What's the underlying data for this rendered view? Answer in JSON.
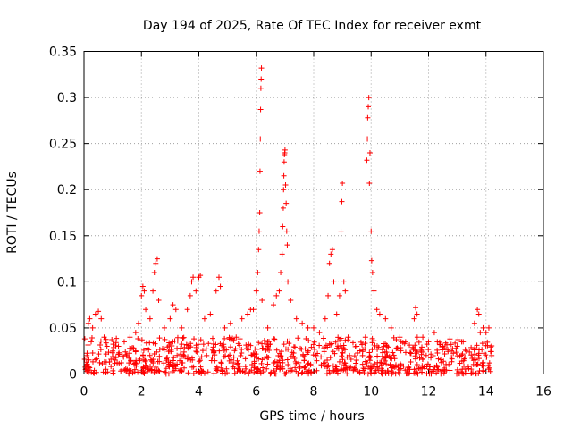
{
  "chart_data": {
    "type": "scatter",
    "title": "Day 194 of 2025, Rate Of TEC Index for receiver exmt",
    "xlabel": "GPS time / hours",
    "ylabel": "ROTI / TECUs",
    "xlim": [
      0,
      16
    ],
    "ylim": [
      0,
      0.35
    ],
    "xticks": [
      "0",
      "2",
      "4",
      "6",
      "8",
      "10",
      "12",
      "14",
      "16"
    ],
    "yticks": [
      "0",
      "0.05",
      "0.1",
      "0.15",
      "0.2",
      "0.25",
      "0.3",
      "0.35"
    ],
    "grid": true,
    "marker": "+",
    "color": "#ff0000",
    "series": [
      {
        "name": "ROTI",
        "points": [
          [
            0.05,
            0.005
          ],
          [
            0.1,
            0.02
          ],
          [
            0.15,
            0.055
          ],
          [
            0.2,
            0.06
          ],
          [
            0.25,
            0.035
          ],
          [
            0.3,
            0.05
          ],
          [
            0.4,
            0.065
          ],
          [
            0.5,
            0.068
          ],
          [
            0.6,
            0.06
          ],
          [
            0.7,
            0.04
          ],
          [
            0.8,
            0.03
          ],
          [
            1.0,
            0.025
          ],
          [
            1.2,
            0.03
          ],
          [
            1.4,
            0.035
          ],
          [
            1.6,
            0.04
          ],
          [
            1.8,
            0.045
          ],
          [
            1.9,
            0.055
          ],
          [
            2.0,
            0.085
          ],
          [
            2.05,
            0.095
          ],
          [
            2.1,
            0.09
          ],
          [
            2.15,
            0.07
          ],
          [
            2.3,
            0.06
          ],
          [
            2.4,
            0.09
          ],
          [
            2.45,
            0.11
          ],
          [
            2.5,
            0.12
          ],
          [
            2.55,
            0.125
          ],
          [
            2.6,
            0.08
          ],
          [
            2.8,
            0.05
          ],
          [
            3.0,
            0.06
          ],
          [
            3.1,
            0.075
          ],
          [
            3.2,
            0.07
          ],
          [
            3.4,
            0.05
          ],
          [
            3.6,
            0.07
          ],
          [
            3.7,
            0.085
          ],
          [
            3.75,
            0.1
          ],
          [
            3.8,
            0.105
          ],
          [
            3.9,
            0.09
          ],
          [
            4.0,
            0.105
          ],
          [
            4.05,
            0.107
          ],
          [
            4.2,
            0.06
          ],
          [
            4.4,
            0.065
          ],
          [
            4.6,
            0.09
          ],
          [
            4.7,
            0.105
          ],
          [
            4.75,
            0.095
          ],
          [
            4.9,
            0.05
          ],
          [
            5.1,
            0.055
          ],
          [
            5.3,
            0.04
          ],
          [
            5.5,
            0.06
          ],
          [
            5.7,
            0.065
          ],
          [
            5.8,
            0.07
          ],
          [
            5.9,
            0.07
          ],
          [
            6.0,
            0.09
          ],
          [
            6.05,
            0.11
          ],
          [
            6.08,
            0.135
          ],
          [
            6.1,
            0.155
          ],
          [
            6.12,
            0.175
          ],
          [
            6.13,
            0.22
          ],
          [
            6.14,
            0.255
          ],
          [
            6.15,
            0.287
          ],
          [
            6.16,
            0.31
          ],
          [
            6.17,
            0.32
          ],
          [
            6.18,
            0.332
          ],
          [
            6.2,
            0.08
          ],
          [
            6.4,
            0.05
          ],
          [
            6.6,
            0.075
          ],
          [
            6.7,
            0.085
          ],
          [
            6.8,
            0.09
          ],
          [
            6.85,
            0.11
          ],
          [
            6.9,
            0.13
          ],
          [
            6.92,
            0.16
          ],
          [
            6.94,
            0.18
          ],
          [
            6.95,
            0.2
          ],
          [
            6.96,
            0.215
          ],
          [
            6.97,
            0.23
          ],
          [
            6.98,
            0.238
          ],
          [
            6.99,
            0.24
          ],
          [
            7.0,
            0.243
          ],
          [
            7.02,
            0.205
          ],
          [
            7.04,
            0.185
          ],
          [
            7.06,
            0.155
          ],
          [
            7.08,
            0.14
          ],
          [
            7.1,
            0.1
          ],
          [
            7.2,
            0.08
          ],
          [
            7.4,
            0.06
          ],
          [
            7.6,
            0.055
          ],
          [
            7.8,
            0.05
          ],
          [
            8.0,
            0.05
          ],
          [
            8.2,
            0.045
          ],
          [
            8.4,
            0.06
          ],
          [
            8.5,
            0.085
          ],
          [
            8.55,
            0.12
          ],
          [
            8.6,
            0.13
          ],
          [
            8.65,
            0.135
          ],
          [
            8.7,
            0.1
          ],
          [
            8.8,
            0.065
          ],
          [
            8.9,
            0.085
          ],
          [
            8.95,
            0.155
          ],
          [
            8.98,
            0.187
          ],
          [
            9.0,
            0.207
          ],
          [
            9.05,
            0.1
          ],
          [
            9.1,
            0.09
          ],
          [
            9.2,
            0.04
          ],
          [
            9.5,
            0.03
          ],
          [
            9.7,
            0.02
          ],
          [
            9.8,
            0.04
          ],
          [
            9.85,
            0.232
          ],
          [
            9.87,
            0.255
          ],
          [
            9.88,
            0.278
          ],
          [
            9.9,
            0.29
          ],
          [
            9.92,
            0.3
          ],
          [
            9.94,
            0.207
          ],
          [
            9.96,
            0.24
          ],
          [
            10.0,
            0.155
          ],
          [
            10.02,
            0.123
          ],
          [
            10.05,
            0.11
          ],
          [
            10.1,
            0.09
          ],
          [
            10.2,
            0.07
          ],
          [
            10.3,
            0.065
          ],
          [
            10.5,
            0.06
          ],
          [
            10.7,
            0.05
          ],
          [
            11.0,
            0.04
          ],
          [
            11.2,
            0.035
          ],
          [
            11.5,
            0.06
          ],
          [
            11.55,
            0.072
          ],
          [
            11.6,
            0.065
          ],
          [
            11.8,
            0.04
          ],
          [
            12.0,
            0.035
          ],
          [
            12.2,
            0.045
          ],
          [
            12.5,
            0.03
          ],
          [
            12.8,
            0.025
          ],
          [
            13.0,
            0.03
          ],
          [
            13.3,
            0.025
          ],
          [
            13.6,
            0.055
          ],
          [
            13.7,
            0.07
          ],
          [
            13.75,
            0.065
          ],
          [
            13.8,
            0.045
          ],
          [
            13.9,
            0.05
          ],
          [
            14.0,
            0.045
          ],
          [
            14.1,
            0.05
          ],
          [
            14.2,
            0.02
          ]
        ],
        "density_band": {
          "x_range": [
            0,
            14.2
          ],
          "y_range": [
            0,
            0.04
          ]
        }
      }
    ]
  }
}
